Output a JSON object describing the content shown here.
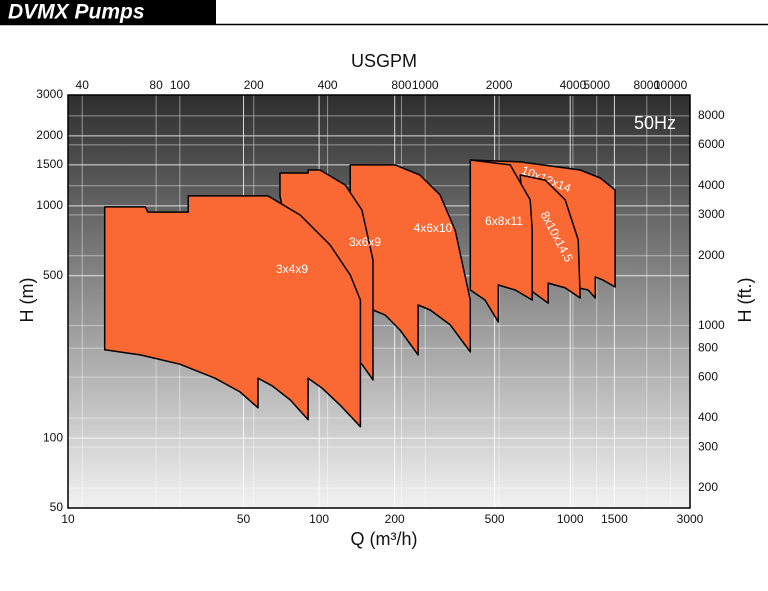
{
  "chart_data": {
    "type": "area",
    "title": "DVMX Pumps",
    "annotation": "50Hz",
    "x_label": "Q (m³/h)",
    "x2_label": "USGPM",
    "y_label": "H (m)",
    "y2_label": "H (ft.)",
    "log_scale": true,
    "grid": true,
    "color": "#fa6833",
    "xlim": [
      10,
      3000
    ],
    "xticks": [
      10,
      50,
      100,
      200,
      500,
      1000,
      1500,
      3000
    ],
    "x2lim": [
      35,
      12000
    ],
    "x2ticks": [
      40,
      80,
      100,
      200,
      400,
      800,
      1000,
      2000,
      4000,
      5000,
      8000,
      10000
    ],
    "ylim": [
      50,
      3000
    ],
    "yticks": [
      50,
      100,
      500,
      1000,
      1500,
      2000,
      3000
    ],
    "y2lim": [
      164,
      9840
    ],
    "y2ticks": [
      200,
      300,
      400,
      600,
      800,
      1000,
      2000,
      3000,
      4000,
      6000,
      8000
    ],
    "series": [
      {
        "name": "3x4x9",
        "x": [
          14.0,
          20.3,
          20.8,
          30.1,
          30.1,
          62.6,
          84.0,
          110.6,
          133,
          146,
          146,
          121,
          102.8,
          90.4,
          90.4,
          76.7,
          65.0,
          57.1,
          57.1,
          48.4,
          38.5,
          27.9,
          19.4,
          14.0
        ],
        "values": [
          989,
          989,
          940,
          940,
          1103,
          1103,
          913,
          678,
          504,
          393,
          112,
          139,
          164,
          181,
          120,
          146,
          168,
          181,
          135,
          158,
          181,
          208,
          228,
          240
        ]
      },
      {
        "name": "3x6x9",
        "x": [
          69.9,
          69.9,
          90.4,
          90.4,
          100.9,
          127,
          148,
          164,
          164,
          148,
          133,
          110.6,
          84.0
        ],
        "values": [
          1103,
          1384,
          1384,
          1426,
          1426,
          1229,
          959,
          585,
          178,
          208,
          228,
          292,
          393
        ]
      },
      {
        "name": "4x6x10",
        "x": [
          133,
          133,
          201,
          252,
          303,
          348,
          400,
          400,
          333,
          277,
          248,
          248,
          210,
          183,
          164
        ],
        "values": [
          1103,
          1500,
          1500,
          1357,
          1114,
          787,
          393,
          235,
          307,
          356,
          374,
          228,
          292,
          339,
          356
        ]
      },
      {
        "name": "6x8x11",
        "x": [
          400,
          400,
          577,
          693,
          706,
          706,
          604,
          517,
          517,
          458,
          400
        ],
        "values": [
          1060,
          1575,
          1500,
          1060,
          787,
          393,
          434,
          456,
          316,
          393,
          434
        ]
      },
      {
        "name": "8x10x14.5",
        "x": [
          632,
          795,
          955,
          1076,
          1096,
          955,
          817,
          817,
          693
        ],
        "values": [
          1357,
          1291,
          1060,
          713,
          401,
          443,
          465,
          381,
          434
        ]
      },
      {
        "name": "10x12x14",
        "x": [
          400,
          632,
          1096,
          1318,
          1510,
          1510,
          1352,
          1259,
          1259,
          1180,
          1076
        ],
        "values": [
          1575,
          1545,
          1426,
          1317,
          1170,
          447,
          479,
          494,
          401,
          434,
          443
        ]
      }
    ]
  }
}
